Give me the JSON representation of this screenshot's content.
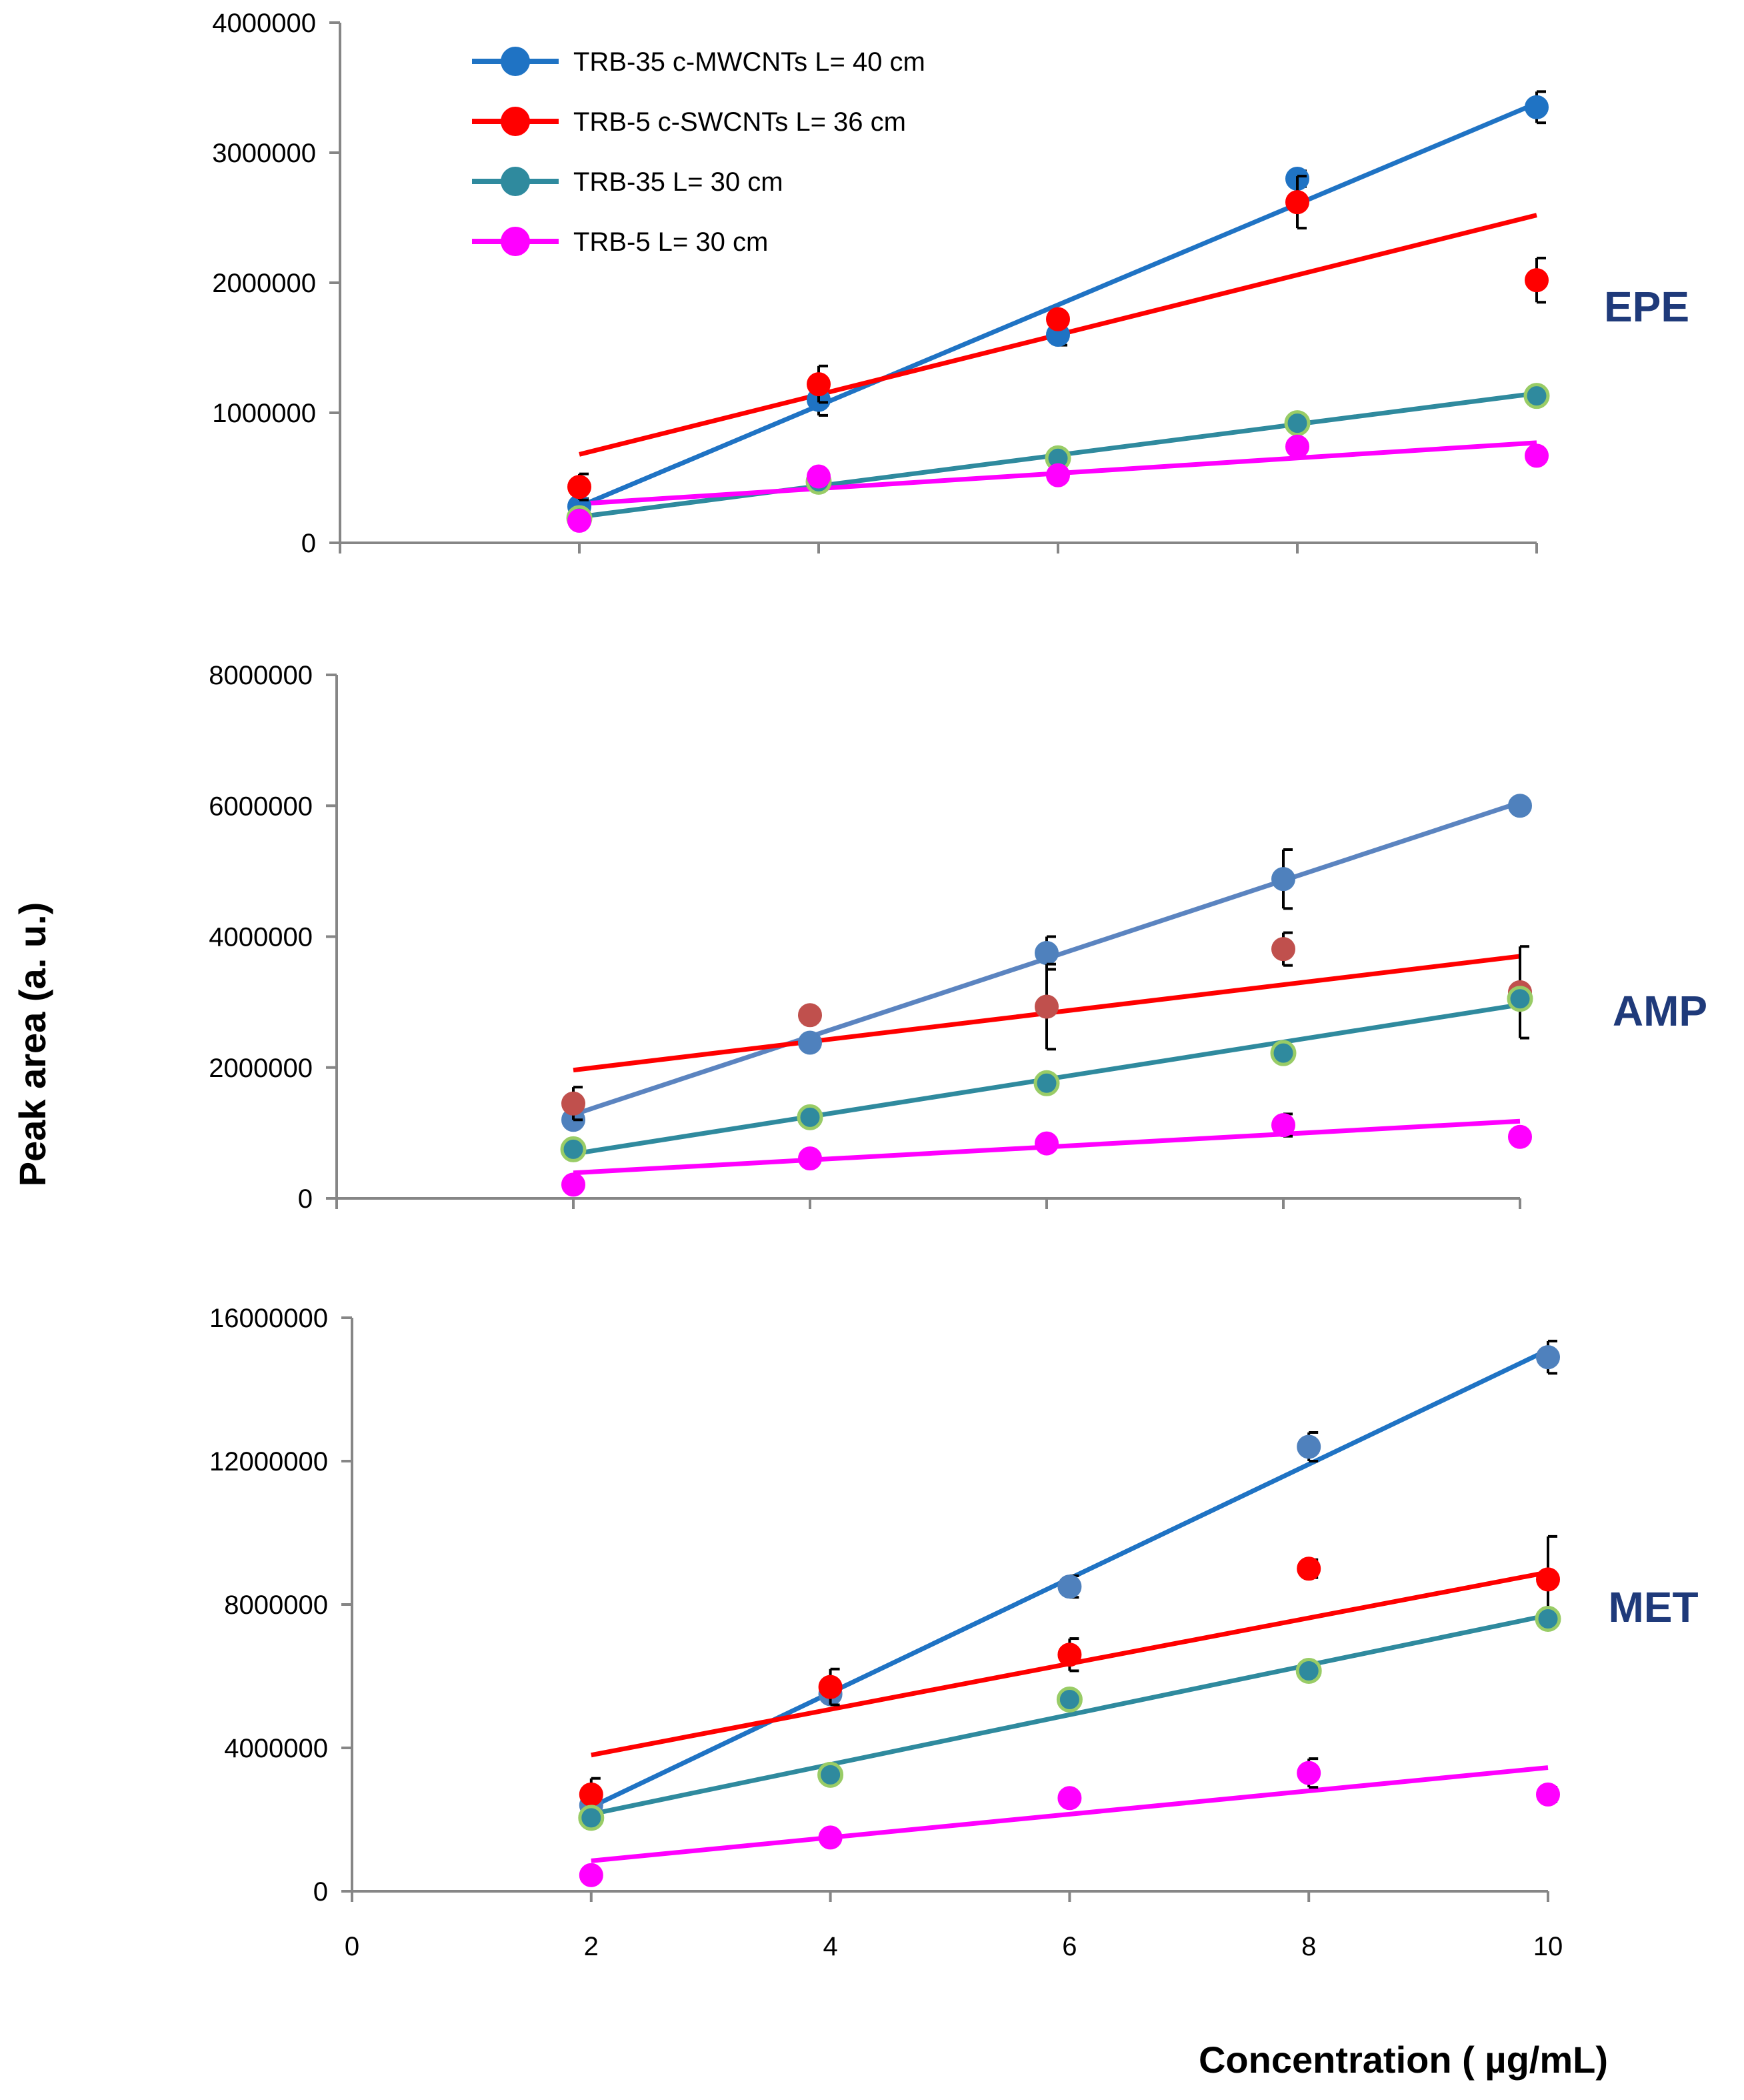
{
  "chart_data": [
    {
      "type": "scatter",
      "title": "",
      "panel_label": "EPE",
      "xlim": [
        0,
        10
      ],
      "ylim": [
        0,
        4000000
      ],
      "yticks": [
        "0",
        "1000000",
        "2000000",
        "3000000",
        "4000000"
      ],
      "ytick_values": [
        0,
        1000000,
        2000000,
        3000000,
        4000000
      ],
      "x_tick_values": [
        2,
        4,
        6,
        8,
        10
      ],
      "legend": {
        "placement": "top-left",
        "entries": [
          {
            "label": "TRB-35 c-MWCNTs  L= 40 cm",
            "color": "#1f73c4"
          },
          {
            "label": "TRB-5 c-SWCNTs  L= 36 cm",
            "color": "#ff0000"
          },
          {
            "label": "TRB-35  L= 30 cm",
            "color": "#2f8a9e"
          },
          {
            "label": "TRB-5  L= 30 cm",
            "color": "#ff00ff"
          }
        ]
      },
      "series": [
        {
          "name": "TRB-35 c-MWCNTs  L= 40 cm",
          "color": "#1f73c4",
          "point_color": "#1f73c4",
          "x": [
            2,
            4,
            6,
            8,
            10
          ],
          "y": [
            280000,
            1100000,
            1600000,
            2800000,
            3350000
          ],
          "err": [
            60000,
            120000,
            80000,
            60000,
            120000
          ],
          "fit": [
            [
              2,
              280000
            ],
            [
              10,
              3380000
            ]
          ]
        },
        {
          "name": "TRB-5 c-SWCNTs  L= 36 cm",
          "color": "#ff0000",
          "point_color": "#ff0000",
          "x": [
            2,
            4,
            6,
            8,
            10
          ],
          "y": [
            430000,
            1220000,
            1720000,
            2620000,
            2020000
          ],
          "err": [
            100000,
            140000,
            0,
            200000,
            170000
          ],
          "fit": [
            [
              2,
              680000
            ],
            [
              10,
              2520000
            ]
          ]
        },
        {
          "name": "TRB-35  L= 30 cm",
          "color": "#2f8a9e",
          "point_color": "#99cc66",
          "x": [
            2,
            4,
            6,
            8,
            10
          ],
          "y": [
            190000,
            470000,
            650000,
            920000,
            1130000
          ],
          "err": [
            0,
            0,
            0,
            0,
            0
          ],
          "fit": [
            [
              2,
              200000
            ],
            [
              10,
              1150000
            ]
          ]
        },
        {
          "name": "TRB-5  L= 30 cm",
          "color": "#ff00ff",
          "point_color": "#ff00ff",
          "x": [
            2,
            4,
            6,
            8,
            10
          ],
          "y": [
            170000,
            510000,
            520000,
            740000,
            670000
          ],
          "err": [
            0,
            0,
            0,
            0,
            0
          ],
          "fit": [
            [
              2,
              300000
            ],
            [
              10,
              770000
            ]
          ]
        }
      ]
    },
    {
      "type": "scatter",
      "title": "",
      "panel_label": "AMP",
      "xlim": [
        0,
        10
      ],
      "ylim": [
        0,
        8000000
      ],
      "yticks": [
        "0",
        "2000000",
        "4000000",
        "6000000",
        "8000000"
      ],
      "ytick_values": [
        0,
        2000000,
        4000000,
        6000000,
        8000000
      ],
      "x_tick_values": [
        2,
        4,
        6,
        8,
        10
      ],
      "series": [
        {
          "name": "TRB-35 c-MWCNTs  L= 40 cm",
          "color": "#5b84c0",
          "point_color": "#4f81bd",
          "x": [
            2,
            4,
            6,
            8,
            10
          ],
          "y": [
            1200000,
            2380000,
            3750000,
            4880000,
            6000000
          ],
          "err": [
            0,
            0,
            250000,
            450000,
            100000
          ],
          "fit": [
            [
              2,
              1280000
            ],
            [
              10,
              6050000
            ]
          ]
        },
        {
          "name": "TRB-5 c-SWCNTs  L= 36 cm",
          "color": "#ff0000",
          "point_color": "#c0504d",
          "x": [
            2,
            4,
            6,
            8,
            10
          ],
          "y": [
            1450000,
            2800000,
            2930000,
            3810000,
            3150000
          ],
          "err": [
            250000,
            0,
            650000,
            250000,
            700000
          ],
          "fit": [
            [
              2,
              1960000
            ],
            [
              10,
              3700000
            ]
          ]
        },
        {
          "name": "TRB-35  L= 30 cm",
          "color": "#2f8a9e",
          "point_color": "#99cc66",
          "x": [
            2,
            4,
            6,
            8,
            10
          ],
          "y": [
            750000,
            1240000,
            1760000,
            2220000,
            3050000
          ],
          "err": [
            0,
            0,
            0,
            0,
            0
          ],
          "fit": [
            [
              2,
              680000
            ],
            [
              10,
              2960000
            ]
          ]
        },
        {
          "name": "TRB-5  L= 30 cm",
          "color": "#ff00ff",
          "point_color": "#ff00ff",
          "x": [
            2,
            4,
            6,
            8,
            10
          ],
          "y": [
            210000,
            610000,
            840000,
            1120000,
            940000
          ],
          "err": [
            0,
            0,
            0,
            170000,
            0
          ],
          "fit": [
            [
              2,
              390000
            ],
            [
              10,
              1180000
            ]
          ]
        }
      ]
    },
    {
      "type": "scatter",
      "title": "",
      "panel_label": "MET",
      "xlim": [
        0,
        10
      ],
      "ylim": [
        0,
        16000000
      ],
      "yticks": [
        "0",
        "4000000",
        "8000000",
        "12000000",
        "16000000"
      ],
      "ytick_values": [
        0,
        4000000,
        8000000,
        12000000,
        16000000
      ],
      "x_tick_values": [
        0,
        2,
        4,
        6,
        8,
        10
      ],
      "xticks": [
        "0",
        "2",
        "4",
        "6",
        "8",
        "10"
      ],
      "xlabel": "Concentration  ( µg/mL)",
      "series": [
        {
          "name": "TRB-35 c-MWCNTs  L= 40 cm",
          "color": "#1f73c4",
          "point_color": "#4f81bd",
          "x": [
            2,
            4,
            6,
            8,
            10
          ],
          "y": [
            2400000,
            5500000,
            8500000,
            12400000,
            14900000
          ],
          "err": [
            0,
            0,
            300000,
            400000,
            450000
          ],
          "fit": [
            [
              2,
              2350000
            ],
            [
              10,
              15100000
            ]
          ]
        },
        {
          "name": "TRB-5 c-SWCNTs  L= 36 cm",
          "color": "#ff0000",
          "point_color": "#ff0000",
          "x": [
            2,
            4,
            6,
            8,
            10
          ],
          "y": [
            2700000,
            5700000,
            6600000,
            9000000,
            8700000
          ],
          "err": [
            450000,
            500000,
            450000,
            250000,
            1200000
          ],
          "fit": [
            [
              2,
              3800000
            ],
            [
              10,
              8900000
            ]
          ]
        },
        {
          "name": "TRB-35  L= 30 cm",
          "color": "#2f8a9e",
          "point_color": "#99cc66",
          "x": [
            2,
            4,
            6,
            8,
            10
          ],
          "y": [
            2050000,
            3250000,
            5350000,
            6150000,
            7600000
          ],
          "err": [
            0,
            0,
            0,
            0,
            0
          ],
          "fit": [
            [
              2,
              2150000
            ],
            [
              10,
              7700000
            ]
          ]
        },
        {
          "name": "TRB-5  L= 30 cm",
          "color": "#ff00ff",
          "point_color": "#ff00ff",
          "x": [
            2,
            4,
            6,
            8,
            10
          ],
          "y": [
            450000,
            1500000,
            2600000,
            3300000,
            2700000
          ],
          "err": [
            0,
            0,
            0,
            400000,
            200000
          ],
          "fit": [
            [
              2,
              850000
            ],
            [
              10,
              3450000
            ]
          ]
        }
      ]
    }
  ],
  "ylabel": "Peak area (a. u.)"
}
